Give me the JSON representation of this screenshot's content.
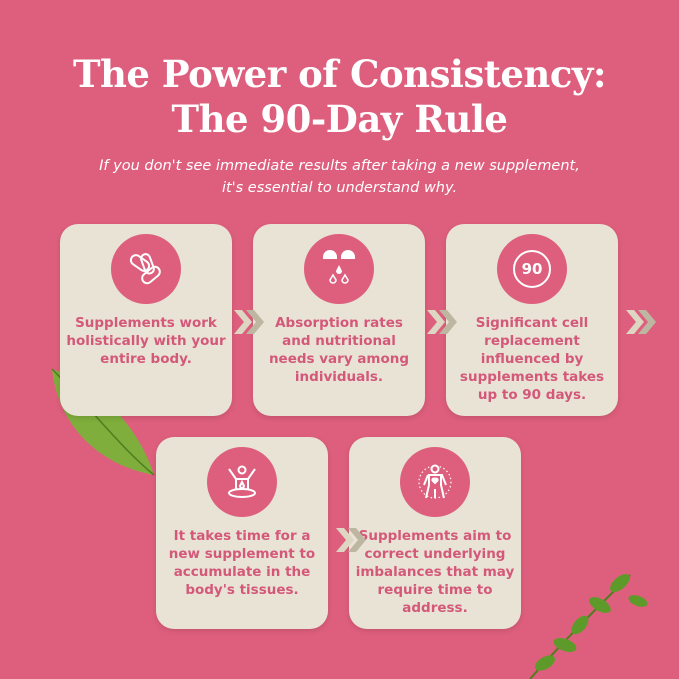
{
  "title": {
    "line1": "The Power of Consistency:",
    "line2": "The 90-Day Rule"
  },
  "subtitle": {
    "line1": "If you don't see immediate results after taking a new supplement,",
    "line2": "it's essential to understand why."
  },
  "cards": [
    {
      "icon": "pills-icon",
      "text": "Supplements work holistically with your entire body."
    },
    {
      "icon": "capsule-drops-icon",
      "text": "Absorption rates and nutritional needs vary among individuals."
    },
    {
      "icon": "ninety-badge-icon",
      "badge": "90",
      "text": "Significant cell replacement influenced by supplements takes up to 90 days."
    },
    {
      "icon": "body-absorption-icon",
      "text": "It takes time for a new supplement to accumulate in the body's tissues."
    },
    {
      "icon": "body-balance-icon",
      "text": "Supplements aim to correct underlying imbalances that may require time to address."
    }
  ],
  "colors": {
    "background": "#de5f7d",
    "card": "#e8e3d5",
    "text": "#d4587a",
    "chevron": "#bdb6a0"
  }
}
